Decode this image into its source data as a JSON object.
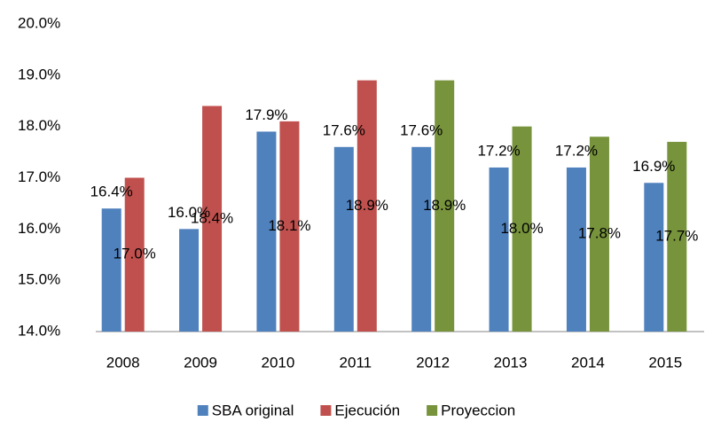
{
  "chart_data": {
    "type": "bar",
    "categories": [
      "2008",
      "2009",
      "2010",
      "2011",
      "2012",
      "2013",
      "2014",
      "2015"
    ],
    "series": [
      {
        "name": "SBA original",
        "color": "#4f81bd",
        "values": [
          16.4,
          16.0,
          17.9,
          17.6,
          17.6,
          17.2,
          17.2,
          16.9
        ],
        "value_labels": [
          "16.4%",
          "16.0%",
          "17.9%",
          "17.6%",
          "17.6%",
          "17.2%",
          "17.2%",
          "16.9%"
        ]
      },
      {
        "name": "Ejecución",
        "color": "#c0504d",
        "values": [
          17.0,
          18.4,
          18.1,
          18.9,
          null,
          null,
          null,
          null
        ],
        "value_labels": [
          "17.0%",
          "18.4%",
          "18.1%",
          "18.9%",
          null,
          null,
          null,
          null
        ]
      },
      {
        "name": "Proyeccion",
        "color": "#77933c",
        "values": [
          null,
          null,
          null,
          null,
          18.9,
          18.0,
          17.8,
          17.7
        ],
        "value_labels": [
          null,
          null,
          null,
          null,
          "18.9%",
          "18.0%",
          "17.8%",
          "17.7%"
        ]
      }
    ],
    "ylim": [
      14,
      20
    ],
    "yticks": [
      {
        "value": 14,
        "label": "14.0%"
      },
      {
        "value": 15,
        "label": "15.0%"
      },
      {
        "value": 16,
        "label": "16.0%"
      },
      {
        "value": 17,
        "label": "17.0%"
      },
      {
        "value": 18,
        "label": "18.0%"
      },
      {
        "value": 19,
        "label": "19.0%"
      },
      {
        "value": 20,
        "label": "20.0%"
      }
    ],
    "grid": false,
    "legend": "bottom"
  }
}
